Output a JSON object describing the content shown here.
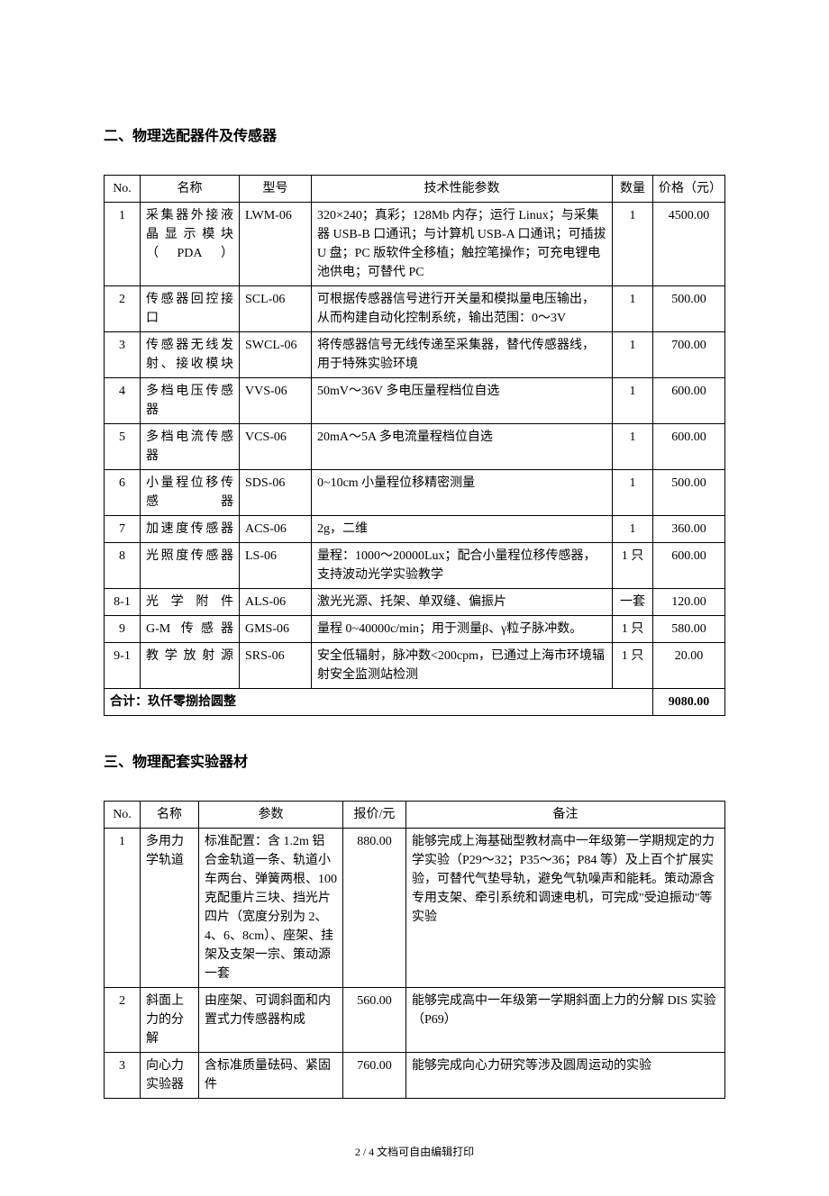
{
  "section1": {
    "title": "二、物理选配器件及传感器",
    "headers": [
      "No.",
      "名称",
      "型号",
      "技术性能参数",
      "数量",
      "价格（元）"
    ],
    "rows": [
      {
        "no": "1",
        "name": "采集器外接液晶显示模块（PDA）",
        "model": "LWM-06",
        "desc": "320×240；真彩；128Mb 内存；运行 Linux；与采集器 USB-B 口通讯；与计算机 USB-A 口通讯；可插拔 U 盘；PC 版软件全移植；触控笔操作；可充电锂电池供电；可替代 PC",
        "qty": "1",
        "price": "4500.00"
      },
      {
        "no": "2",
        "name": "传感器回控接口",
        "model": "SCL-06",
        "desc": "可根据传感器信号进行开关量和模拟量电压输出，从而构建自动化控制系统，输出范围：0～3V",
        "qty": "1",
        "price": "500.00"
      },
      {
        "no": "3",
        "name": "传感器无线发射、接收模块",
        "model": "SWCL-06",
        "desc": "将传感器信号无线传递至采集器，替代传感器线，用于特殊实验环境",
        "qty": "1",
        "price": "700.00"
      },
      {
        "no": "4",
        "name": "多档电压传感器",
        "model": "VVS-06",
        "desc": "50mV～36V 多电压量程档位自选",
        "qty": "1",
        "price": "600.00"
      },
      {
        "no": "5",
        "name": "多档电流传感器",
        "model": "VCS-06",
        "desc": "20mA～5A 多电流量程档位自选",
        "qty": "1",
        "price": "600.00"
      },
      {
        "no": "6",
        "name": "小量程位移传感器",
        "model": "SDS-06",
        "desc": "0~10cm 小量程位移精密测量",
        "qty": "1",
        "price": "500.00"
      },
      {
        "no": "7",
        "name": "加速度传感器",
        "model": "ACS-06",
        "desc": "2g，二维",
        "qty": "1",
        "price": "360.00"
      },
      {
        "no": "8",
        "name": "光照度传感器",
        "model": "LS-06",
        "desc": "量程：1000～20000Lux；配合小量程位移传感器，支持波动光学实验教学",
        "qty": "1 只",
        "price": "600.00"
      },
      {
        "no": "8-1",
        "name": "光学附件",
        "model": "ALS-06",
        "desc": "激光光源、托架、单双缝、偏振片",
        "qty": "一套",
        "price": "120.00"
      },
      {
        "no": "9",
        "name": "G-M 传感器",
        "model": "GMS-06",
        "desc": "量程 0~40000c/min；用于测量β、γ粒子脉冲数。",
        "qty": "1 只",
        "price": "580.00"
      },
      {
        "no": "9-1",
        "name": "教学放射源",
        "model": "SRS-06",
        "desc": "安全低辐射，脉冲数<200cpm，已通过上海市环境辐射安全监测站检测",
        "qty": "1 只",
        "price": "20.00"
      }
    ],
    "total_label": "合计：玖仟零捌拾圆整",
    "total_value": "9080.00"
  },
  "section2": {
    "title": "三、物理配套实验器材",
    "headers": [
      "No.",
      "名称",
      "参数",
      "报价/元",
      "备注"
    ],
    "rows": [
      {
        "no": "1",
        "name": "多用力学轨道",
        "param": "标准配置：含 1.2m 铝合金轨道一条、轨道小车两台、弹簧两根、100 克配重片三块、挡光片四片（宽度分别为 2、4、6、8cm）、座架、挂架及支架一宗、策动源一套",
        "price": "880.00",
        "note": "能够完成上海基础型教材高中一年级第一学期规定的力学实验（P29～32；P35～36；P84 等）及上百个扩展实验，可替代气垫导轨，避免气轨噪声和能耗。策动源含专用支架、牵引系统和调速电机，可完成\"受迫振动\"等实验"
      },
      {
        "no": "2",
        "name": "斜面上力的分解",
        "param": "由座架、可调斜面和内置式力传感器构成",
        "price": "560.00",
        "note": "能够完成高中一年级第一学期斜面上力的分解 DIS 实验（P69）"
      },
      {
        "no": "3",
        "name": "向心力实验器",
        "param": "含标准质量砝码、紧固件",
        "price": "760.00",
        "note": "能够完成向心力研究等涉及圆周运动的实验"
      }
    ]
  },
  "footer": "2 / 4 文档可自由编辑打印"
}
